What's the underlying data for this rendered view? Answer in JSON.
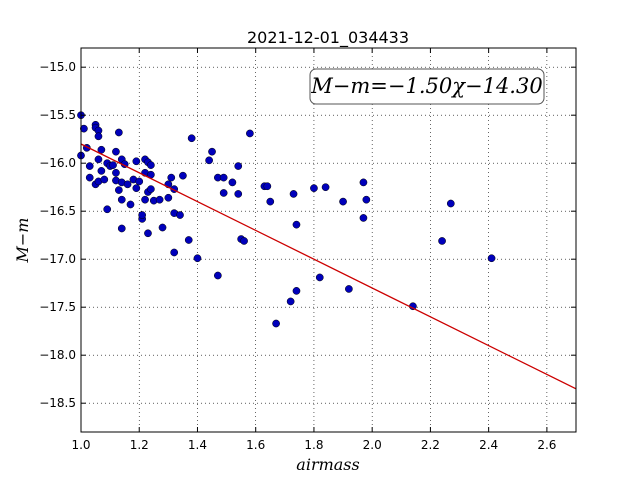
{
  "chart_data": {
    "type": "scatter",
    "title": "2021-12-01_034433",
    "xlabel": "airmass",
    "ylabel": "M−m",
    "xlim": [
      1.0,
      2.7
    ],
    "ylim": [
      -18.8,
      -14.8
    ],
    "xticks": [
      1.0,
      1.2,
      1.4,
      1.6,
      1.8,
      2.0,
      2.2,
      2.4,
      2.6
    ],
    "yticks": [
      -15.0,
      -15.5,
      -16.0,
      -16.5,
      -17.0,
      -17.5,
      -18.0,
      -18.5
    ],
    "xtick_labels": [
      "1.0",
      "1.2",
      "1.4",
      "1.6",
      "1.8",
      "2.0",
      "2.2",
      "2.4",
      "2.6"
    ],
    "ytick_labels": [
      "−15.0",
      "−15.5",
      "−16.0",
      "−16.5",
      "−17.0",
      "−17.5",
      "−18.0",
      "−18.5"
    ],
    "grid": true,
    "annotation": "M−m=−1.50χ−14.30",
    "fit_line": {
      "slope": -1.5,
      "intercept": -14.3,
      "color": "#cc0000"
    },
    "marker_color": "#0000bb",
    "points": [
      [
        1.0,
        -15.5
      ],
      [
        1.01,
        -15.64
      ],
      [
        1.0,
        -15.92
      ],
      [
        1.02,
        -15.84
      ],
      [
        1.03,
        -16.03
      ],
      [
        1.03,
        -16.15
      ],
      [
        1.05,
        -15.6
      ],
      [
        1.05,
        -15.63
      ],
      [
        1.06,
        -15.66
      ],
      [
        1.06,
        -15.72
      ],
      [
        1.06,
        -15.96
      ],
      [
        1.07,
        -15.86
      ],
      [
        1.07,
        -16.08
      ],
      [
        1.05,
        -16.22
      ],
      [
        1.06,
        -16.19
      ],
      [
        1.08,
        -16.17
      ],
      [
        1.09,
        -16.0
      ],
      [
        1.1,
        -16.03
      ],
      [
        1.09,
        -16.48
      ],
      [
        1.11,
        -16.02
      ],
      [
        1.12,
        -15.88
      ],
      [
        1.12,
        -16.1
      ],
      [
        1.13,
        -15.68
      ],
      [
        1.12,
        -16.18
      ],
      [
        1.13,
        -16.28
      ],
      [
        1.14,
        -16.2
      ],
      [
        1.14,
        -16.38
      ],
      [
        1.14,
        -16.68
      ],
      [
        1.14,
        -15.96
      ],
      [
        1.15,
        -16.01
      ],
      [
        1.16,
        -16.22
      ],
      [
        1.17,
        -16.43
      ],
      [
        1.18,
        -16.17
      ],
      [
        1.19,
        -16.26
      ],
      [
        1.19,
        -15.98
      ],
      [
        1.2,
        -16.19
      ],
      [
        1.21,
        -16.58
      ],
      [
        1.21,
        -16.54
      ],
      [
        1.22,
        -15.96
      ],
      [
        1.22,
        -16.1
      ],
      [
        1.23,
        -16.3
      ],
      [
        1.23,
        -15.99
      ],
      [
        1.23,
        -16.73
      ],
      [
        1.24,
        -16.02
      ],
      [
        1.24,
        -16.12
      ],
      [
        1.24,
        -16.27
      ],
      [
        1.22,
        -16.38
      ],
      [
        1.25,
        -16.39
      ],
      [
        1.27,
        -16.38
      ],
      [
        1.28,
        -16.67
      ],
      [
        1.3,
        -16.36
      ],
      [
        1.3,
        -16.22
      ],
      [
        1.31,
        -16.15
      ],
      [
        1.32,
        -16.27
      ],
      [
        1.32,
        -16.52
      ],
      [
        1.32,
        -16.93
      ],
      [
        1.34,
        -16.54
      ],
      [
        1.35,
        -16.13
      ],
      [
        1.37,
        -16.8
      ],
      [
        1.38,
        -15.74
      ],
      [
        1.4,
        -16.99
      ],
      [
        1.44,
        -15.97
      ],
      [
        1.45,
        -15.88
      ],
      [
        1.47,
        -16.15
      ],
      [
        1.47,
        -17.17
      ],
      [
        1.49,
        -16.15
      ],
      [
        1.49,
        -16.31
      ],
      [
        1.52,
        -16.2
      ],
      [
        1.54,
        -16.32
      ],
      [
        1.54,
        -16.03
      ],
      [
        1.55,
        -16.79
      ],
      [
        1.56,
        -16.81
      ],
      [
        1.58,
        -15.69
      ],
      [
        1.63,
        -16.24
      ],
      [
        1.64,
        -16.24
      ],
      [
        1.65,
        -16.4
      ],
      [
        1.67,
        -17.67
      ],
      [
        1.72,
        -17.44
      ],
      [
        1.73,
        -16.32
      ],
      [
        1.74,
        -16.64
      ],
      [
        1.74,
        -17.33
      ],
      [
        1.8,
        -16.26
      ],
      [
        1.82,
        -17.19
      ],
      [
        1.84,
        -16.25
      ],
      [
        1.9,
        -16.4
      ],
      [
        1.92,
        -17.31
      ],
      [
        1.97,
        -16.2
      ],
      [
        1.98,
        -16.38
      ],
      [
        1.97,
        -16.57
      ],
      [
        2.14,
        -17.49
      ],
      [
        2.24,
        -16.81
      ],
      [
        2.27,
        -16.42
      ],
      [
        2.41,
        -16.99
      ]
    ]
  }
}
